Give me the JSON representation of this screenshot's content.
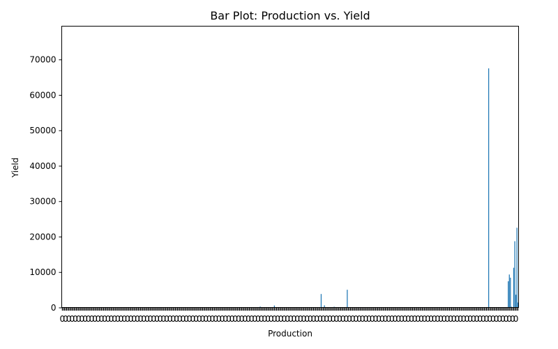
{
  "chart_data": {
    "type": "bar",
    "title": "Bar Plot: Production vs. Yield",
    "xlabel": "Production",
    "ylabel": "Yield",
    "ylim": [
      0,
      79500
    ],
    "yticks": [
      0,
      10000,
      20000,
      30000,
      40000,
      50000,
      60000,
      70000
    ],
    "grid": false,
    "legend": "none",
    "colors": {
      "bar": "#1f77b4",
      "axis": "#000000"
    },
    "category_count": 420,
    "note_x_ticks": "x tick labels are dense and unreadable",
    "bars": [
      {
        "index": 0,
        "value": 10
      },
      {
        "index": 40,
        "value": 12
      },
      {
        "index": 90,
        "value": 15
      },
      {
        "index": 180,
        "value": 200
      },
      {
        "index": 182,
        "value": 350
      },
      {
        "index": 188,
        "value": 150
      },
      {
        "index": 195,
        "value": 650
      },
      {
        "index": 200,
        "value": 80
      },
      {
        "index": 208,
        "value": 120
      },
      {
        "index": 215,
        "value": 60
      },
      {
        "index": 220,
        "value": 100
      },
      {
        "index": 225,
        "value": 200
      },
      {
        "index": 230,
        "value": 50
      },
      {
        "index": 238,
        "value": 3900
      },
      {
        "index": 241,
        "value": 700
      },
      {
        "index": 245,
        "value": 150
      },
      {
        "index": 250,
        "value": 300
      },
      {
        "index": 255,
        "value": 180
      },
      {
        "index": 262,
        "value": 5100
      },
      {
        "index": 268,
        "value": 120
      },
      {
        "index": 275,
        "value": 90
      },
      {
        "index": 282,
        "value": 160
      },
      {
        "index": 290,
        "value": 70
      },
      {
        "index": 300,
        "value": 110
      },
      {
        "index": 310,
        "value": 60
      },
      {
        "index": 320,
        "value": 130
      },
      {
        "index": 330,
        "value": 80
      },
      {
        "index": 340,
        "value": 100
      },
      {
        "index": 350,
        "value": 150
      },
      {
        "index": 355,
        "value": 60
      },
      {
        "index": 360,
        "value": 120
      },
      {
        "index": 366,
        "value": 90
      },
      {
        "index": 372,
        "value": 110
      },
      {
        "index": 378,
        "value": 70
      },
      {
        "index": 384,
        "value": 60
      },
      {
        "index": 392,
        "value": 67600
      },
      {
        "index": 398,
        "value": 100
      },
      {
        "index": 404,
        "value": 80
      },
      {
        "index": 408,
        "value": 150
      },
      {
        "index": 410,
        "value": 7500
      },
      {
        "index": 411,
        "value": 9400
      },
      {
        "index": 412,
        "value": 8500
      },
      {
        "index": 413,
        "value": 300
      },
      {
        "index": 414,
        "value": 200
      },
      {
        "index": 415,
        "value": 11300
      },
      {
        "index": 416,
        "value": 18800
      },
      {
        "index": 417,
        "value": 3700
      },
      {
        "index": 418,
        "value": 22600
      },
      {
        "index": 419,
        "value": 1500
      }
    ]
  }
}
